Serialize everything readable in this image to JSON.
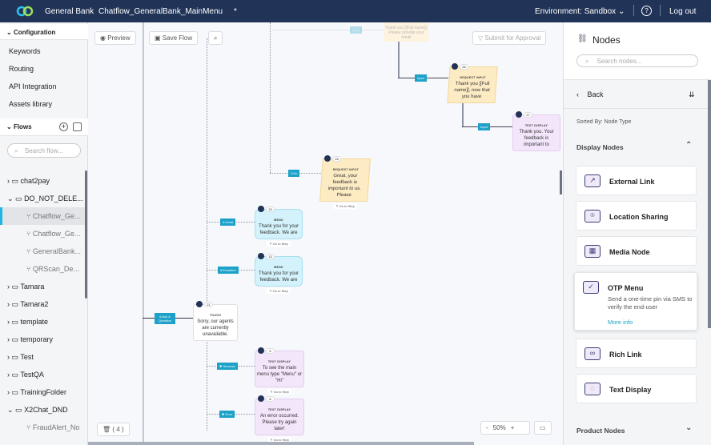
{
  "header": {
    "brand": "General Bank",
    "flow_title": "Chatflow_GeneralBank_MainMenu",
    "unsaved_marker": "*",
    "environment": "Environment: Sandbox",
    "help": "?",
    "logout": "Log out"
  },
  "sidebar": {
    "config_title": "Configuration",
    "config_items": [
      "Keywords",
      "Routing",
      "API Integration",
      "Assets library"
    ],
    "flows_title": "Flows",
    "search_placeholder": "Search flow...",
    "tree": [
      {
        "label": "chat2pay",
        "type": "folder",
        "open": false
      },
      {
        "label": "DO_NOT_DELE...",
        "type": "folder",
        "open": true
      },
      {
        "label": "Chatflow_Ge...",
        "type": "flow",
        "selected": true
      },
      {
        "label": "Chatflow_Ge...",
        "type": "flow"
      },
      {
        "label": "GeneralBank...",
        "type": "flow"
      },
      {
        "label": "QRScan_De...",
        "type": "flow"
      },
      {
        "label": "Tamara",
        "type": "folder"
      },
      {
        "label": "Tamara2",
        "type": "folder"
      },
      {
        "label": "template",
        "type": "folder"
      },
      {
        "label": "temporary",
        "type": "folder"
      },
      {
        "label": "Test",
        "type": "folder"
      },
      {
        "label": "TestQA",
        "type": "folder"
      },
      {
        "label": "TrainingFolder",
        "type": "folder"
      },
      {
        "label": "X2Chat_DND",
        "type": "folder",
        "open": true
      },
      {
        "label": "FraudAlert_No",
        "type": "flow"
      }
    ]
  },
  "toolbar": {
    "preview": "Preview",
    "save": "Save Flow",
    "submit": "Submit for Approval",
    "trash": "( 4 )",
    "zoom": "50%",
    "zoom_out": "-",
    "zoom_in": "+"
  },
  "canvas": {
    "faded_node": "Thank you [[Full name]], Please provide your email",
    "faded_label": "Input",
    "nodes": [
      {
        "num": "26",
        "type": "REQUEST INPUT",
        "text": "Thank you [[Full name]], now that you have"
      },
      {
        "num": "27",
        "type": "TEXT DISPLAY",
        "text": "Thank you. Your feedback is important to"
      },
      {
        "num": "16",
        "type": "REQUEST INPUT",
        "text": "Great, your feedback is important to us. Please"
      },
      {
        "num": "13",
        "type": "MENU",
        "text": "Thank you for your feedback. We are"
      },
      {
        "num": "13",
        "type": "MENU",
        "text": "Thank you for your feedback. We are"
      },
      {
        "num": "21",
        "type": "TOUCH",
        "text": "Sorry, our agents are currently unavailable."
      },
      {
        "num": "5",
        "type": "TEXT DISPLAY",
        "text": "To see the main menu type \"Menu\" or \"Hi\""
      },
      {
        "num": "6",
        "type": "TEXT DISPLAY",
        "text": "An error occurred. Please try again later!"
      }
    ],
    "edges": [
      "Input",
      "Input",
      "2:No",
      "4:Great",
      "5:Excellent",
      "6:Ask A Question",
      "Success",
      "Error"
    ],
    "goto": "Go to Step"
  },
  "panel": {
    "title": "Nodes",
    "search_placeholder": "Search nodes...",
    "back": "Back",
    "sorted_by": "Sorted By: Node Type",
    "display_section": "Display Nodes",
    "product_section": "Product Nodes",
    "cards": [
      {
        "label": "External Link",
        "icon": "external-link-icon"
      },
      {
        "label": "Location Sharing",
        "icon": "location-pin-icon"
      },
      {
        "label": "Media Node",
        "icon": "film-icon"
      },
      {
        "label": "OTP Menu",
        "icon": "shield-check-icon",
        "description": "Send a one-time pin via SMS to verify the end-user",
        "link": "More info"
      },
      {
        "label": "Rich Link",
        "icon": "link-icon"
      },
      {
        "label": "Text Display",
        "icon": "chat-bubble-icon"
      }
    ]
  },
  "colors": {
    "header": "#213457",
    "accent": "#1da1c8",
    "request_input": "#fdebc4",
    "text_display": "#f3e6fb",
    "menu": "#d3f2fb"
  }
}
